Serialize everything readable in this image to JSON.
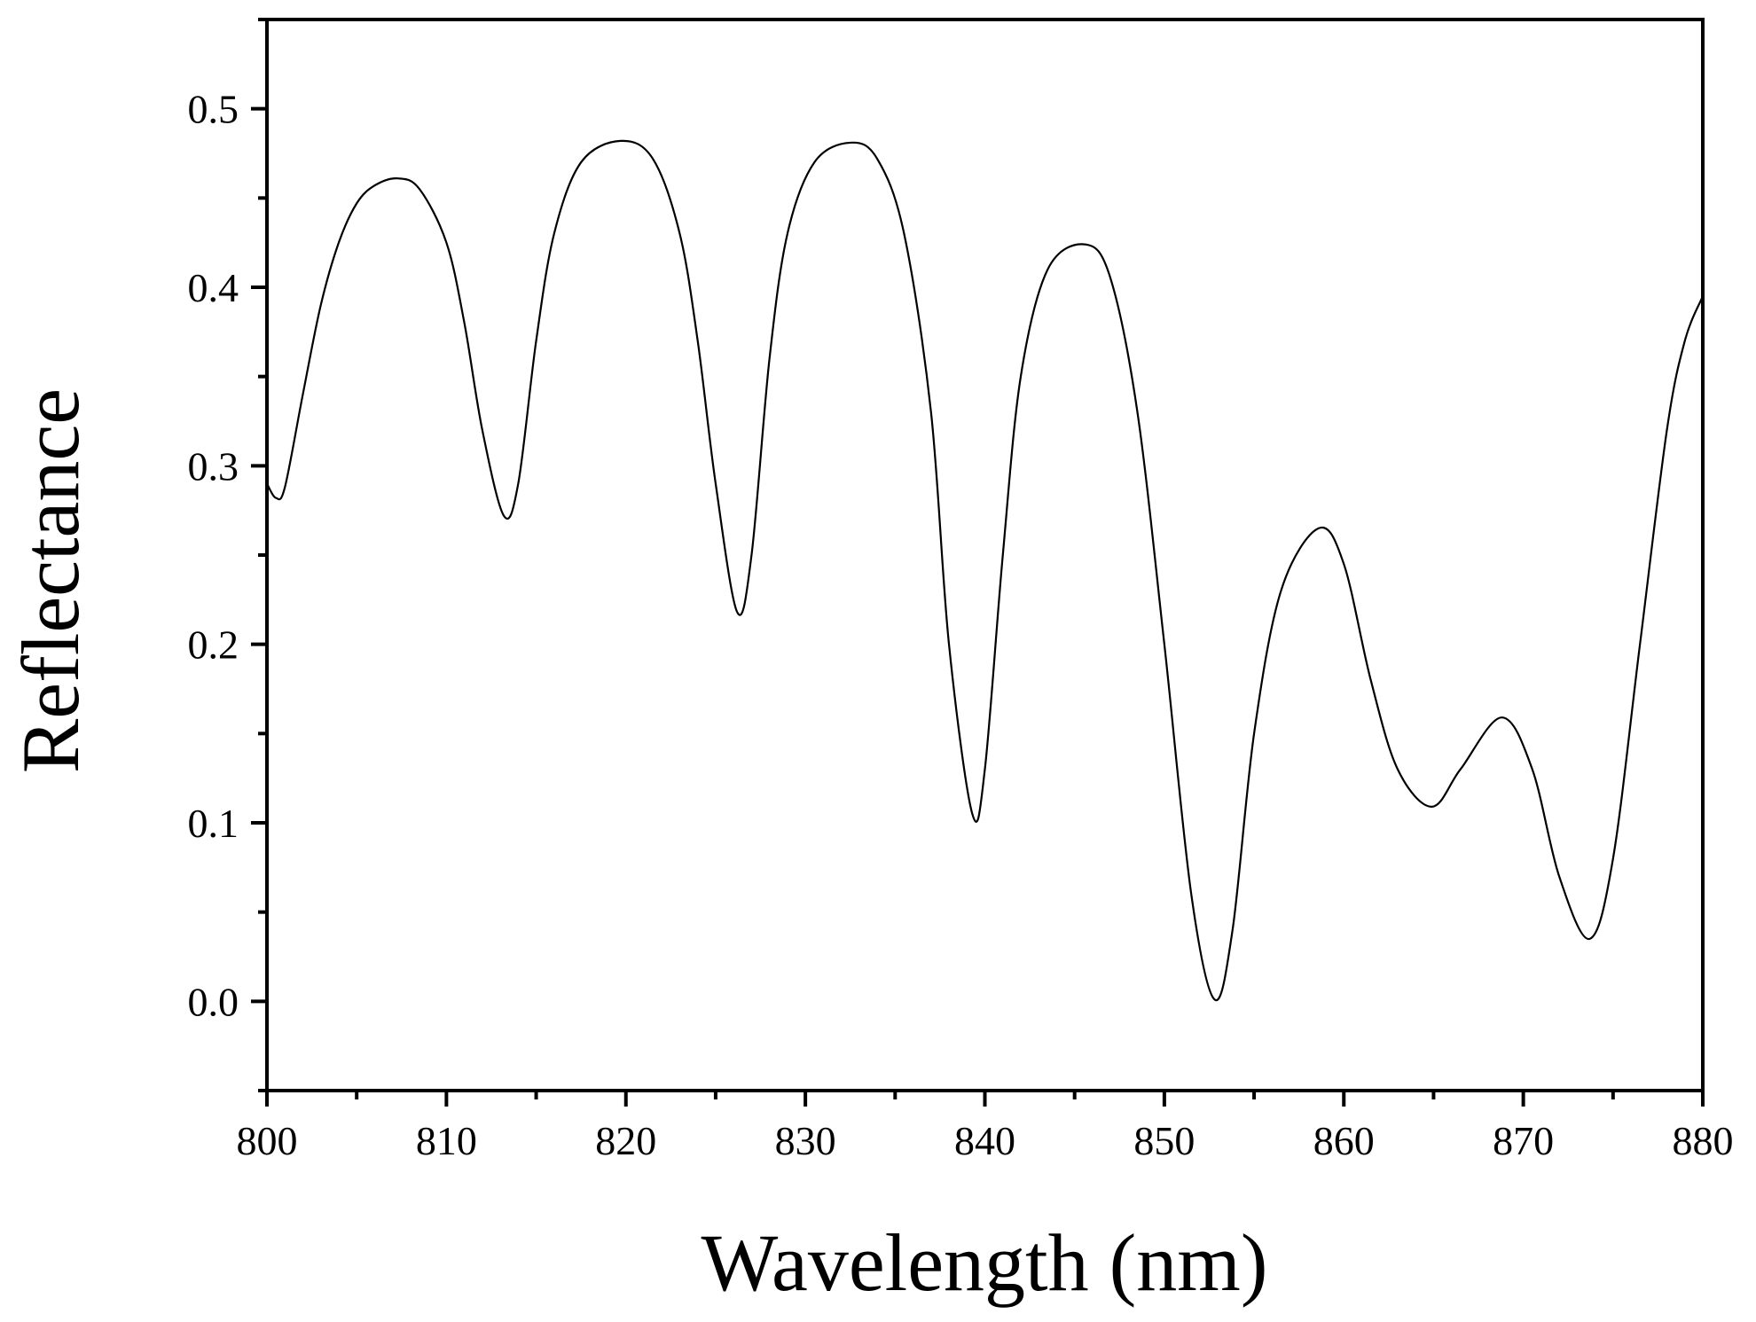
{
  "chart_data": {
    "type": "line",
    "title": "",
    "xlabel": "Wavelength (nm)",
    "ylabel": "Reflectance",
    "xlim": [
      800,
      880
    ],
    "ylim": [
      -0.05,
      0.55
    ],
    "xticks": [
      800,
      810,
      820,
      830,
      840,
      850,
      860,
      870,
      880
    ],
    "xtick_labels": [
      "800",
      "810",
      "820",
      "830",
      "840",
      "850",
      "860",
      "870",
      "880"
    ],
    "yticks": [
      0.0,
      0.1,
      0.2,
      0.3,
      0.4,
      0.5
    ],
    "ytick_labels": [
      "0.0",
      "0.1",
      "0.2",
      "0.3",
      "0.4",
      "0.5"
    ],
    "grid": false,
    "line_color": "#000000",
    "series": [
      {
        "name": "Reflectance",
        "x": [
          800.0,
          800.5,
          801.0,
          802.0,
          803.0,
          804.0,
          805.0,
          806.0,
          807.3,
          808.5,
          810.0,
          811.0,
          812.0,
          813.2,
          814.0,
          815.0,
          816.0,
          817.5,
          819.7,
          821.5,
          823.0,
          824.0,
          825.0,
          826.2,
          827.0,
          828.0,
          829.0,
          830.5,
          832.5,
          834.0,
          835.5,
          837.0,
          838.0,
          839.3,
          840.0,
          841.0,
          842.0,
          843.5,
          845.6,
          847.0,
          848.5,
          850.0,
          851.5,
          852.8,
          853.8,
          855.0,
          856.5,
          858.6,
          860.0,
          861.5,
          863.0,
          864.9,
          866.5,
          868.8,
          870.5,
          872.0,
          873.7,
          875.0,
          876.5,
          878.0,
          879.0,
          880.0
        ],
        "y": [
          0.29,
          0.282,
          0.288,
          0.34,
          0.39,
          0.425,
          0.447,
          0.457,
          0.461,
          0.455,
          0.425,
          0.38,
          0.32,
          0.272,
          0.29,
          0.37,
          0.43,
          0.47,
          0.482,
          0.472,
          0.43,
          0.37,
          0.29,
          0.218,
          0.25,
          0.36,
          0.43,
          0.47,
          0.481,
          0.472,
          0.43,
          0.33,
          0.2,
          0.105,
          0.13,
          0.25,
          0.35,
          0.41,
          0.424,
          0.405,
          0.33,
          0.2,
          0.06,
          0.001,
          0.04,
          0.15,
          0.23,
          0.265,
          0.245,
          0.18,
          0.13,
          0.109,
          0.13,
          0.159,
          0.13,
          0.07,
          0.035,
          0.08,
          0.2,
          0.32,
          0.37,
          0.395
        ]
      }
    ]
  }
}
